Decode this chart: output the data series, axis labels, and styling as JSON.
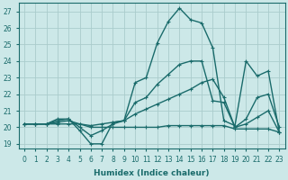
{
  "xlabel": "Humidex (Indice chaleur)",
  "xlim": [
    -0.5,
    23.5
  ],
  "ylim": [
    18.7,
    27.5
  ],
  "yticks": [
    19,
    20,
    21,
    22,
    23,
    24,
    25,
    26,
    27
  ],
  "xticks": [
    0,
    1,
    2,
    3,
    4,
    5,
    6,
    7,
    8,
    9,
    10,
    11,
    12,
    13,
    14,
    15,
    16,
    17,
    18,
    19,
    20,
    21,
    22,
    23
  ],
  "bg_color": "#cce8e8",
  "grid_color": "#aacccc",
  "line_color": "#1a6b6b",
  "line_width": 1.0,
  "marker_size": 2.5,
  "series": [
    {
      "x": [
        0,
        1,
        2,
        3,
        4,
        5,
        6,
        7,
        8,
        9,
        10,
        11,
        12,
        13,
        14,
        15,
        16,
        17,
        18,
        19,
        20,
        21,
        22,
        23
      ],
      "y": [
        20.2,
        20.2,
        20.2,
        20.5,
        20.5,
        19.8,
        19.0,
        19.0,
        20.3,
        20.4,
        22.7,
        23.0,
        25.1,
        26.4,
        27.2,
        26.5,
        26.3,
        24.8,
        20.4,
        20.1,
        24.0,
        23.1,
        23.4,
        19.7
      ]
    },
    {
      "x": [
        0,
        1,
        2,
        3,
        4,
        5,
        6,
        7,
        8,
        9,
        10,
        11,
        12,
        13,
        14,
        15,
        16,
        17,
        18,
        19,
        20,
        21,
        22,
        23
      ],
      "y": [
        20.2,
        20.2,
        20.2,
        20.4,
        20.5,
        20.0,
        19.5,
        19.8,
        20.2,
        20.4,
        21.5,
        21.8,
        22.6,
        23.2,
        23.8,
        24.0,
        24.0,
        21.6,
        21.5,
        20.0,
        20.5,
        21.8,
        22.0,
        20.0
      ]
    },
    {
      "x": [
        0,
        1,
        2,
        3,
        4,
        5,
        6,
        7,
        8,
        9,
        10,
        11,
        12,
        13,
        14,
        15,
        16,
        17,
        18,
        19,
        20,
        21,
        22,
        23
      ],
      "y": [
        20.2,
        20.2,
        20.2,
        20.3,
        20.4,
        20.2,
        20.1,
        20.2,
        20.3,
        20.4,
        20.8,
        21.1,
        21.4,
        21.7,
        22.0,
        22.3,
        22.7,
        22.9,
        21.8,
        20.0,
        20.2,
        20.6,
        21.0,
        19.7
      ]
    },
    {
      "x": [
        0,
        1,
        2,
        3,
        4,
        5,
        6,
        7,
        8,
        9,
        10,
        11,
        12,
        13,
        14,
        15,
        16,
        17,
        18,
        19,
        20,
        21,
        22,
        23
      ],
      "y": [
        20.2,
        20.2,
        20.2,
        20.2,
        20.2,
        20.2,
        20.0,
        20.0,
        20.0,
        20.0,
        20.0,
        20.0,
        20.0,
        20.1,
        20.1,
        20.1,
        20.1,
        20.1,
        20.1,
        19.9,
        19.9,
        19.9,
        19.9,
        19.7
      ]
    }
  ]
}
